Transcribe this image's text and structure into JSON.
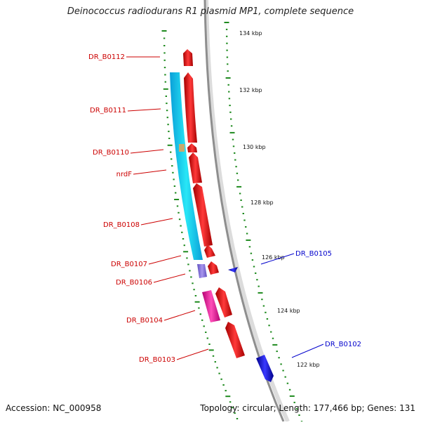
{
  "title": "Deinococcus radiodurans R1 plasmid MP1, complete sequence",
  "accession": "Accession: NC_000958",
  "summary": "Topology: circular; Length: 177,466 bp; Genes: 131",
  "colors": {
    "forward_cds": "#ee1c1c",
    "reverse_cds": "#1010e0",
    "cyan_feature": "#10d6f0",
    "magenta_feature": "#ec1e9b",
    "violet_feature": "#8a75d9",
    "tan_feature": "#c8aa6e",
    "backbone": "#9a9a9a",
    "tick": "#1e8a1e",
    "forward_label": "#cc0000",
    "reverse_label": "#0000cc"
  },
  "ticks": [
    "134 kbp",
    "132 kbp",
    "130 kbp",
    "128 kbp",
    "126 kbp",
    "124 kbp",
    "122 kbp"
  ],
  "gene_labels": {
    "forward": [
      "DR_B0112",
      "DR_B0111",
      "DR_B0110",
      "nrdF",
      "DR_B0108",
      "DR_B0107",
      "DR_B0106",
      "DR_B0104",
      "DR_B0103"
    ],
    "reverse": [
      "DR_B0105",
      "DR_B0102"
    ]
  }
}
